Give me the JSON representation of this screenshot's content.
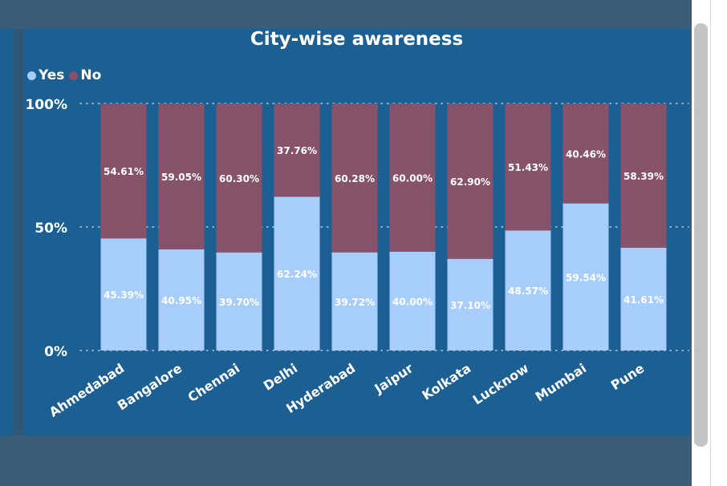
{
  "chart_data": {
    "type": "bar",
    "stacked": true,
    "normalized": true,
    "title": "City-wise awareness",
    "categories": [
      "Ahmedabad",
      "Bangalore",
      "Chennai",
      "Delhi",
      "Hyderabad",
      "Jaipur",
      "Kolkata",
      "Lucknow",
      "Mumbai",
      "Pune"
    ],
    "series": [
      {
        "name": "Yes",
        "color": "#a7cdfb",
        "values": [
          45.39,
          40.95,
          39.7,
          62.24,
          39.72,
          40.0,
          37.1,
          48.57,
          59.54,
          41.61
        ],
        "labels": [
          "45.39%",
          "40.95%",
          "39.70%",
          "62.24%",
          "39.72%",
          "40.00%",
          "37.10%",
          "48.57%",
          "59.54%",
          "41.61%"
        ]
      },
      {
        "name": "No",
        "color": "#87536a",
        "values": [
          54.61,
          59.05,
          60.3,
          37.76,
          60.28,
          60.0,
          62.9,
          51.43,
          40.46,
          58.39
        ],
        "labels": [
          "54.61%",
          "59.05%",
          "60.30%",
          "37.76%",
          "60.28%",
          "60.00%",
          "62.90%",
          "51.43%",
          "40.46%",
          "58.39%"
        ]
      }
    ],
    "yticks": [
      "0%",
      "50%",
      "100%"
    ],
    "ytick_values": [
      0,
      50,
      100
    ],
    "ylim": [
      0,
      100
    ],
    "grid": true,
    "legend_position": "top-left"
  },
  "colors": {
    "panel": "#1b5f93",
    "background": "#3b5d78"
  }
}
